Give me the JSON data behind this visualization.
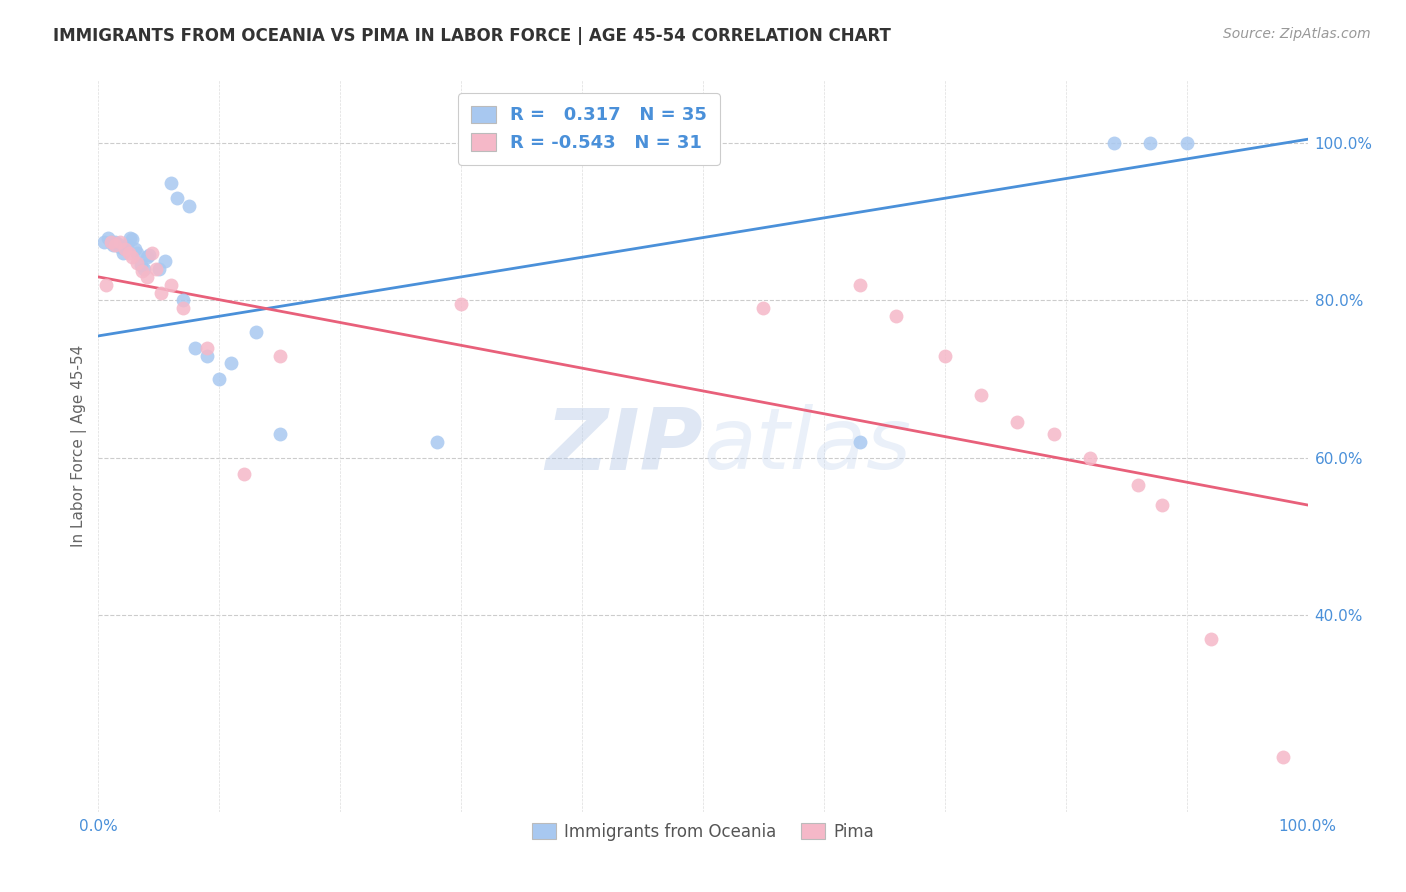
{
  "title": "IMMIGRANTS FROM OCEANIA VS PIMA IN LABOR FORCE | AGE 45-54 CORRELATION CHART",
  "source": "Source: ZipAtlas.com",
  "ylabel": "In Labor Force | Age 45-54",
  "xlim": [
    0.0,
    1.0
  ],
  "ylim": [
    0.15,
    1.08
  ],
  "x_ticks": [
    0.0,
    0.1,
    0.2,
    0.3,
    0.4,
    0.5,
    0.6,
    0.7,
    0.8,
    0.9,
    1.0
  ],
  "y_ticks_right": [
    0.4,
    0.6,
    0.8,
    1.0
  ],
  "y_tick_labels_right": [
    "40.0%",
    "60.0%",
    "80.0%",
    "100.0%"
  ],
  "blue_color": "#A8C8F0",
  "pink_color": "#F5B8C8",
  "blue_line_color": "#4A90D9",
  "pink_line_color": "#E8607A",
  "legend_text_color": "#4A90D9",
  "R_blue": 0.317,
  "N_blue": 35,
  "R_pink": -0.543,
  "N_pink": 31,
  "watermark_zip": "ZIP",
  "watermark_atlas": "atlas",
  "blue_line_y_start": 0.755,
  "blue_line_y_end": 1.005,
  "pink_line_y_start": 0.83,
  "pink_line_y_end": 0.54,
  "blue_scatter_x": [
    0.005,
    0.008,
    0.01,
    0.012,
    0.014,
    0.016,
    0.018,
    0.02,
    0.022,
    0.024,
    0.026,
    0.028,
    0.03,
    0.032,
    0.035,
    0.038,
    0.04,
    0.042,
    0.05,
    0.055,
    0.06,
    0.065,
    0.07,
    0.075,
    0.08,
    0.09,
    0.1,
    0.11,
    0.13,
    0.15,
    0.28,
    0.63,
    0.84,
    0.87,
    0.9
  ],
  "blue_scatter_y": [
    0.875,
    0.88,
    0.875,
    0.87,
    0.875,
    0.872,
    0.868,
    0.86,
    0.865,
    0.87,
    0.88,
    0.878,
    0.865,
    0.86,
    0.845,
    0.84,
    0.855,
    0.858,
    0.84,
    0.85,
    0.95,
    0.93,
    0.8,
    0.92,
    0.74,
    0.73,
    0.7,
    0.72,
    0.76,
    0.63,
    0.62,
    0.62,
    1.0,
    1.0,
    1.0
  ],
  "pink_scatter_x": [
    0.006,
    0.01,
    0.014,
    0.018,
    0.022,
    0.025,
    0.028,
    0.032,
    0.036,
    0.04,
    0.044,
    0.048,
    0.052,
    0.06,
    0.07,
    0.09,
    0.12,
    0.15,
    0.3,
    0.55,
    0.63,
    0.66,
    0.7,
    0.73,
    0.76,
    0.79,
    0.82,
    0.86,
    0.88,
    0.92,
    0.98
  ],
  "pink_scatter_y": [
    0.82,
    0.875,
    0.87,
    0.875,
    0.865,
    0.86,
    0.855,
    0.848,
    0.838,
    0.83,
    0.86,
    0.84,
    0.81,
    0.82,
    0.79,
    0.74,
    0.58,
    0.73,
    0.795,
    0.79,
    0.82,
    0.78,
    0.73,
    0.68,
    0.645,
    0.63,
    0.6,
    0.565,
    0.54,
    0.37,
    0.22
  ]
}
